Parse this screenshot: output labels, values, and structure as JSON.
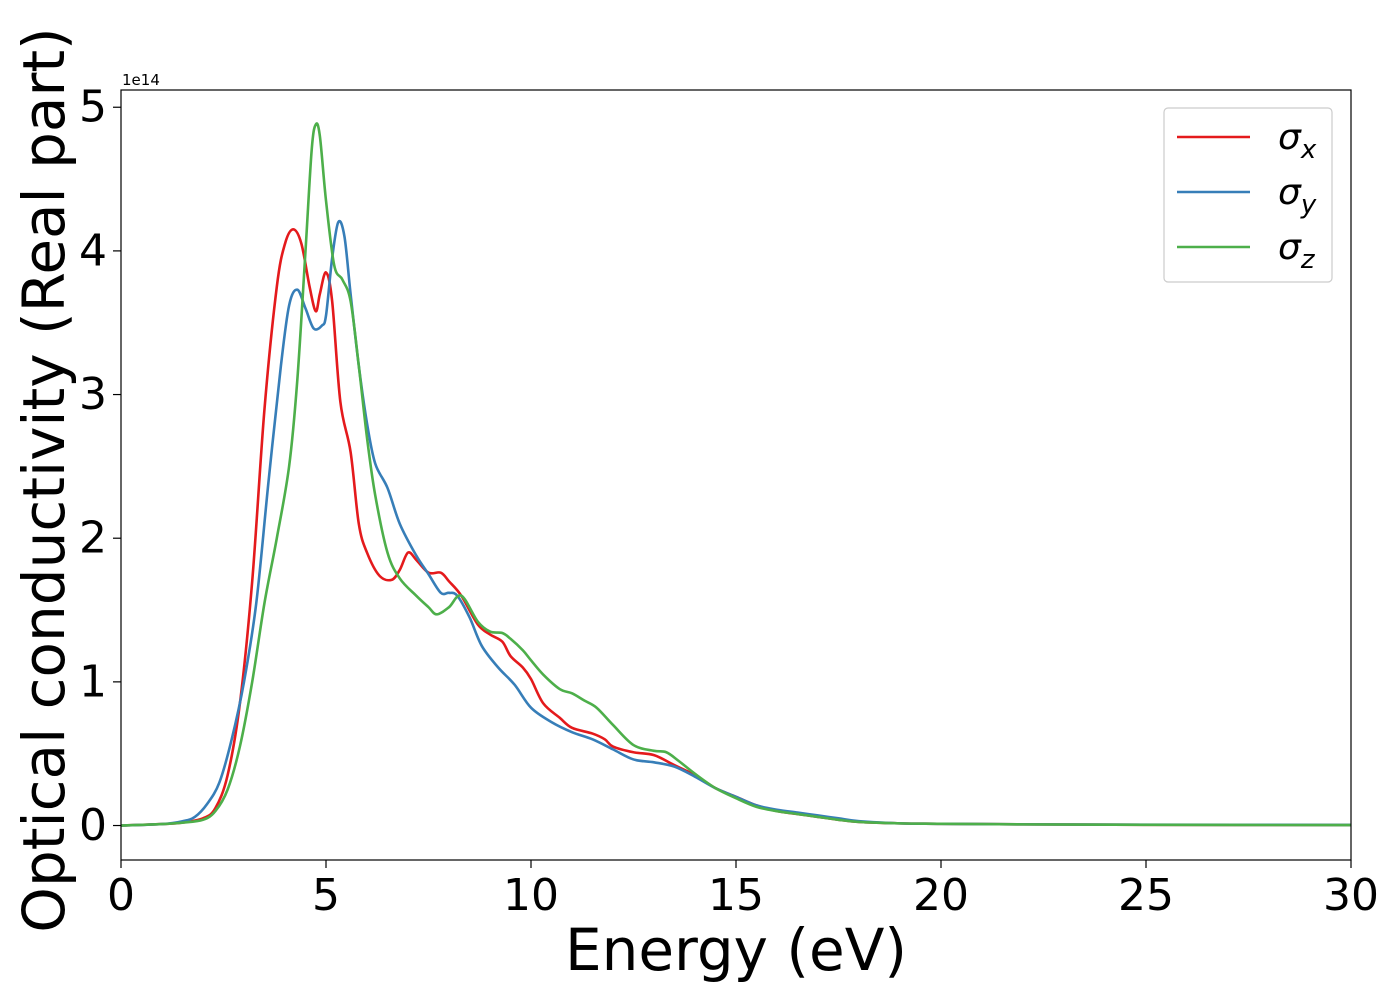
{
  "chart_data": {
    "type": "line",
    "xlabel": "Energy (eV)",
    "ylabel": "Optical conductivity (Real part)",
    "y_offset_label": "1e14",
    "xlim": [
      0,
      30
    ],
    "ylim": [
      -0.24,
      5.12
    ],
    "x_ticks": [
      0,
      5,
      10,
      15,
      20,
      25,
      30
    ],
    "x_tick_labels": [
      "0",
      "5",
      "10",
      "15",
      "20",
      "25",
      "30"
    ],
    "y_ticks": [
      0,
      1,
      2,
      3,
      4,
      5
    ],
    "y_tick_labels": [
      "0",
      "1",
      "2",
      "3",
      "4",
      "5"
    ],
    "grid": false,
    "legend_position": "top-right",
    "series": [
      {
        "name": "σx",
        "symbol": "σ",
        "subscript": "x",
        "color": "#e41a1c",
        "points": [
          [
            0,
            0
          ],
          [
            1,
            0.01
          ],
          [
            1.5,
            0.02
          ],
          [
            2,
            0.05
          ],
          [
            2.3,
            0.12
          ],
          [
            2.6,
            0.35
          ],
          [
            2.9,
            0.85
          ],
          [
            3.2,
            1.7
          ],
          [
            3.5,
            2.9
          ],
          [
            3.8,
            3.75
          ],
          [
            4.0,
            4.05
          ],
          [
            4.2,
            4.15
          ],
          [
            4.4,
            4.05
          ],
          [
            4.6,
            3.75
          ],
          [
            4.75,
            3.58
          ],
          [
            4.85,
            3.7
          ],
          [
            5.0,
            3.85
          ],
          [
            5.15,
            3.65
          ],
          [
            5.35,
            2.95
          ],
          [
            5.6,
            2.6
          ],
          [
            5.8,
            2.1
          ],
          [
            6.0,
            1.9
          ],
          [
            6.3,
            1.74
          ],
          [
            6.6,
            1.71
          ],
          [
            6.8,
            1.78
          ],
          [
            7.0,
            1.9
          ],
          [
            7.2,
            1.85
          ],
          [
            7.5,
            1.76
          ],
          [
            7.8,
            1.76
          ],
          [
            8.0,
            1.7
          ],
          [
            8.3,
            1.6
          ],
          [
            8.7,
            1.4
          ],
          [
            9.0,
            1.33
          ],
          [
            9.3,
            1.28
          ],
          [
            9.5,
            1.18
          ],
          [
            9.8,
            1.1
          ],
          [
            10.0,
            1.02
          ],
          [
            10.3,
            0.85
          ],
          [
            10.7,
            0.75
          ],
          [
            11.0,
            0.68
          ],
          [
            11.5,
            0.64
          ],
          [
            11.8,
            0.6
          ],
          [
            12.0,
            0.55
          ],
          [
            12.5,
            0.51
          ],
          [
            13.0,
            0.49
          ],
          [
            13.5,
            0.42
          ],
          [
            14.0,
            0.35
          ],
          [
            14.5,
            0.26
          ],
          [
            15.0,
            0.2
          ],
          [
            15.5,
            0.14
          ],
          [
            16.0,
            0.1
          ],
          [
            16.5,
            0.08
          ],
          [
            17.0,
            0.06
          ],
          [
            17.5,
            0.04
          ],
          [
            18.0,
            0.025
          ],
          [
            19.0,
            0.015
          ],
          [
            20.0,
            0.012
          ],
          [
            22.0,
            0.008
          ],
          [
            25.0,
            0.005
          ],
          [
            30.0,
            0.003
          ]
        ]
      },
      {
        "name": "σy",
        "symbol": "σ",
        "subscript": "y",
        "color": "#377eb8",
        "points": [
          [
            0,
            0
          ],
          [
            1,
            0.01
          ],
          [
            1.5,
            0.03
          ],
          [
            1.8,
            0.06
          ],
          [
            2.1,
            0.15
          ],
          [
            2.4,
            0.3
          ],
          [
            2.7,
            0.6
          ],
          [
            3.0,
            1.0
          ],
          [
            3.3,
            1.55
          ],
          [
            3.6,
            2.4
          ],
          [
            3.9,
            3.2
          ],
          [
            4.1,
            3.62
          ],
          [
            4.3,
            3.73
          ],
          [
            4.5,
            3.6
          ],
          [
            4.7,
            3.46
          ],
          [
            4.9,
            3.48
          ],
          [
            5.0,
            3.55
          ],
          [
            5.15,
            3.95
          ],
          [
            5.3,
            4.2
          ],
          [
            5.45,
            4.1
          ],
          [
            5.6,
            3.7
          ],
          [
            5.8,
            3.2
          ],
          [
            6.0,
            2.8
          ],
          [
            6.2,
            2.52
          ],
          [
            6.5,
            2.35
          ],
          [
            6.8,
            2.1
          ],
          [
            7.2,
            1.88
          ],
          [
            7.5,
            1.75
          ],
          [
            7.8,
            1.62
          ],
          [
            8.0,
            1.62
          ],
          [
            8.2,
            1.6
          ],
          [
            8.5,
            1.45
          ],
          [
            8.8,
            1.25
          ],
          [
            9.2,
            1.1
          ],
          [
            9.6,
            0.98
          ],
          [
            10.0,
            0.82
          ],
          [
            10.5,
            0.72
          ],
          [
            11.0,
            0.65
          ],
          [
            11.5,
            0.6
          ],
          [
            12.0,
            0.53
          ],
          [
            12.5,
            0.46
          ],
          [
            13.0,
            0.44
          ],
          [
            13.5,
            0.41
          ],
          [
            14.0,
            0.34
          ],
          [
            14.5,
            0.26
          ],
          [
            15.0,
            0.2
          ],
          [
            15.5,
            0.14
          ],
          [
            16.0,
            0.11
          ],
          [
            16.5,
            0.09
          ],
          [
            17.0,
            0.07
          ],
          [
            17.5,
            0.05
          ],
          [
            18.0,
            0.03
          ],
          [
            19.0,
            0.015
          ],
          [
            20.0,
            0.012
          ],
          [
            22.0,
            0.008
          ],
          [
            25.0,
            0.006
          ],
          [
            30.0,
            0.004
          ]
        ]
      },
      {
        "name": "σz",
        "symbol": "σ",
        "subscript": "z",
        "color": "#4daf4a",
        "points": [
          [
            0,
            0
          ],
          [
            1,
            0.01
          ],
          [
            1.5,
            0.02
          ],
          [
            2,
            0.04
          ],
          [
            2.3,
            0.1
          ],
          [
            2.6,
            0.25
          ],
          [
            2.9,
            0.55
          ],
          [
            3.2,
            1.0
          ],
          [
            3.5,
            1.55
          ],
          [
            3.8,
            2.0
          ],
          [
            4.1,
            2.5
          ],
          [
            4.3,
            3.1
          ],
          [
            4.5,
            4.0
          ],
          [
            4.65,
            4.7
          ],
          [
            4.75,
            4.88
          ],
          [
            4.85,
            4.8
          ],
          [
            5.0,
            4.35
          ],
          [
            5.2,
            3.9
          ],
          [
            5.4,
            3.8
          ],
          [
            5.6,
            3.65
          ],
          [
            5.8,
            3.2
          ],
          [
            6.0,
            2.7
          ],
          [
            6.2,
            2.3
          ],
          [
            6.5,
            1.9
          ],
          [
            6.8,
            1.72
          ],
          [
            7.2,
            1.6
          ],
          [
            7.5,
            1.52
          ],
          [
            7.7,
            1.47
          ],
          [
            8.0,
            1.52
          ],
          [
            8.3,
            1.6
          ],
          [
            8.7,
            1.42
          ],
          [
            9.0,
            1.35
          ],
          [
            9.3,
            1.34
          ],
          [
            9.5,
            1.3
          ],
          [
            9.8,
            1.22
          ],
          [
            10.0,
            1.15
          ],
          [
            10.3,
            1.05
          ],
          [
            10.7,
            0.95
          ],
          [
            11.0,
            0.92
          ],
          [
            11.3,
            0.87
          ],
          [
            11.6,
            0.82
          ],
          [
            12.0,
            0.7
          ],
          [
            12.5,
            0.56
          ],
          [
            13.0,
            0.52
          ],
          [
            13.3,
            0.51
          ],
          [
            13.6,
            0.45
          ],
          [
            14.0,
            0.36
          ],
          [
            14.5,
            0.26
          ],
          [
            15.0,
            0.19
          ],
          [
            15.5,
            0.13
          ],
          [
            16.0,
            0.1
          ],
          [
            16.5,
            0.08
          ],
          [
            17.0,
            0.06
          ],
          [
            17.5,
            0.04
          ],
          [
            18.0,
            0.025
          ],
          [
            19.0,
            0.015
          ],
          [
            20.0,
            0.012
          ],
          [
            22.0,
            0.008
          ],
          [
            25.0,
            0.005
          ],
          [
            30.0,
            0.003
          ]
        ]
      }
    ]
  }
}
